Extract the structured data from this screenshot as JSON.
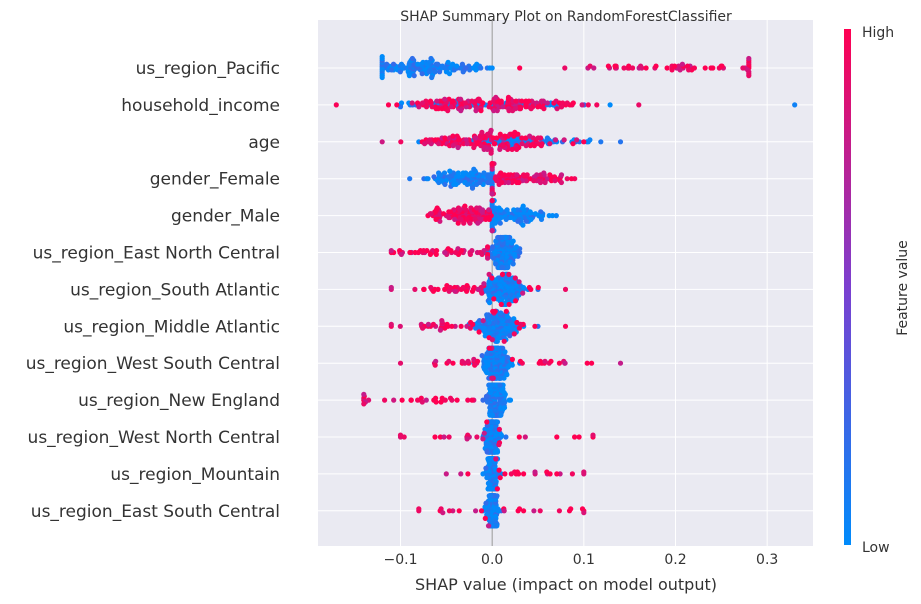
{
  "chart_data": {
    "type": "scatter",
    "subtype": "shap-beeswarm",
    "title": "SHAP Summary Plot on RandomForestClassifier",
    "xlabel": "SHAP value (impact on model output)",
    "xlim": [
      -0.19,
      0.35
    ],
    "xticks": [
      {
        "value": -0.1,
        "label": "−0.1"
      },
      {
        "value": 0.0,
        "label": "0.0"
      },
      {
        "value": 0.1,
        "label": "0.1"
      },
      {
        "value": 0.2,
        "label": "0.2"
      },
      {
        "value": 0.3,
        "label": "0.3"
      }
    ],
    "grid": "horizontal per feature",
    "colorbar": {
      "label": "Feature value",
      "high_label": "High",
      "low_label": "Low",
      "low_color": "#008bfb",
      "mid_color": "#7b3fd0",
      "high_color": "#ff0052"
    },
    "features": [
      {
        "name": "us_region_Pacific",
        "low": {
          "min": -0.12,
          "max": 0.0,
          "center": -0.075,
          "spread": 0.03,
          "n": 140
        },
        "high": {
          "min": 0.03,
          "max": 0.28,
          "center": 0.21,
          "spread": 0.06,
          "n": 60
        }
      },
      {
        "name": "household_income",
        "low": {
          "min": -0.1,
          "max": 0.33,
          "center": 0.0,
          "spread": 0.06,
          "n": 70
        },
        "high": {
          "min": -0.17,
          "max": 0.16,
          "center": 0.0,
          "spread": 0.05,
          "n": 150
        }
      },
      {
        "name": "age",
        "low": {
          "min": -0.08,
          "max": 0.14,
          "center": 0.02,
          "spread": 0.04,
          "n": 90
        },
        "high": {
          "min": -0.12,
          "max": 0.1,
          "center": -0.01,
          "spread": 0.04,
          "n": 140
        }
      },
      {
        "name": "gender_Female",
        "low": {
          "min": -0.09,
          "max": 0.0,
          "center": -0.03,
          "spread": 0.02,
          "n": 120
        },
        "high": {
          "min": 0.0,
          "max": 0.09,
          "center": 0.03,
          "spread": 0.025,
          "n": 110
        }
      },
      {
        "name": "gender_Male",
        "low": {
          "min": 0.0,
          "max": 0.07,
          "center": 0.02,
          "spread": 0.02,
          "n": 110
        },
        "high": {
          "min": -0.07,
          "max": 0.0,
          "center": -0.03,
          "spread": 0.02,
          "n": 120
        }
      },
      {
        "name": "us_region_East North Central",
        "low": {
          "min": -0.01,
          "max": 0.03,
          "center": 0.013,
          "spread": 0.008,
          "n": 150
        },
        "high": {
          "min": -0.11,
          "max": -0.005,
          "center": -0.055,
          "spread": 0.03,
          "n": 50
        }
      },
      {
        "name": "us_region_South Atlantic",
        "low": {
          "min": -0.01,
          "max": 0.05,
          "center": 0.015,
          "spread": 0.01,
          "n": 150
        },
        "high": {
          "min": -0.11,
          "max": 0.08,
          "center": -0.03,
          "spread": 0.04,
          "n": 55
        }
      },
      {
        "name": "us_region_Middle Atlantic",
        "low": {
          "min": -0.05,
          "max": 0.05,
          "center": 0.005,
          "spread": 0.012,
          "n": 150
        },
        "high": {
          "min": -0.11,
          "max": 0.08,
          "center": -0.03,
          "spread": 0.035,
          "n": 45
        }
      },
      {
        "name": "us_region_West South Central",
        "low": {
          "min": -0.02,
          "max": 0.03,
          "center": 0.005,
          "spread": 0.008,
          "n": 160
        },
        "high": {
          "min": -0.1,
          "max": 0.14,
          "center": 0.0,
          "spread": 0.06,
          "n": 40
        }
      },
      {
        "name": "us_region_New England",
        "low": {
          "min": -0.01,
          "max": 0.02,
          "center": 0.005,
          "spread": 0.005,
          "n": 150
        },
        "high": {
          "min": -0.14,
          "max": -0.02,
          "center": -0.08,
          "spread": 0.035,
          "n": 30
        }
      },
      {
        "name": "us_region_West North Central",
        "low": {
          "min": -0.01,
          "max": 0.015,
          "center": 0.0,
          "spread": 0.004,
          "n": 150
        },
        "high": {
          "min": -0.1,
          "max": 0.11,
          "center": 0.0,
          "spread": 0.065,
          "n": 25
        }
      },
      {
        "name": "us_region_Mountain",
        "low": {
          "min": -0.01,
          "max": 0.01,
          "center": 0.0,
          "spread": 0.003,
          "n": 150
        },
        "high": {
          "min": -0.05,
          "max": 0.1,
          "center": 0.03,
          "spread": 0.04,
          "n": 25
        }
      },
      {
        "name": "us_region_East South Central",
        "low": {
          "min": -0.01,
          "max": 0.01,
          "center": 0.0,
          "spread": 0.003,
          "n": 150
        },
        "high": {
          "min": -0.08,
          "max": 0.1,
          "center": 0.01,
          "spread": 0.05,
          "n": 25
        }
      }
    ]
  }
}
